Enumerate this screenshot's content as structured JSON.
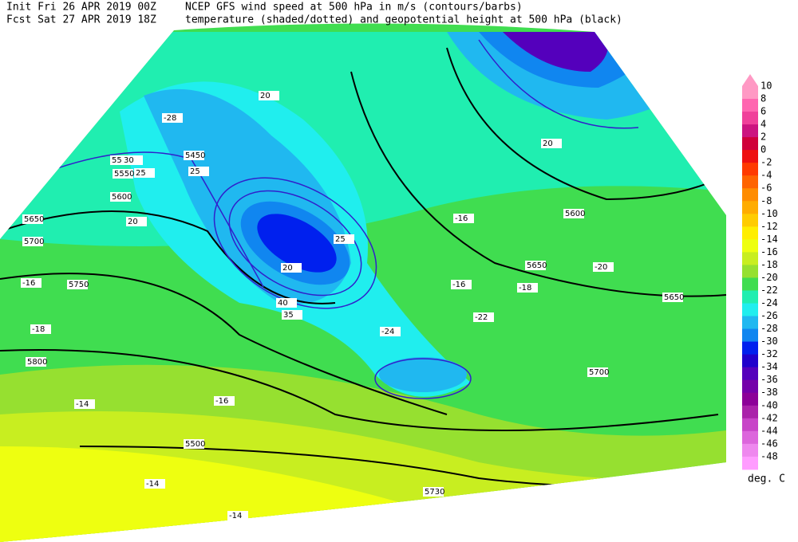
{
  "header": {
    "init": "Init  Fri 26 APR 2019 00Z",
    "fcst": "Fcst Sat 27 APR 2019 18Z",
    "title": "NCEP GFS wind speed at 500 hPa in m/s (contours/barbs)",
    "subtitle": "temperature (shaded/dotted) and geopotential height at 500 hPa (black)"
  },
  "colorbar": {
    "unit": "deg. C",
    "items": [
      {
        "label": "10",
        "color": "#ff99c4"
      },
      {
        "label": "8",
        "color": "#ff66b0"
      },
      {
        "label": "6",
        "color": "#f0409a"
      },
      {
        "label": "4",
        "color": "#cc1480"
      },
      {
        "label": "2",
        "color": "#d0003a"
      },
      {
        "label": "0",
        "color": "#ee1010"
      },
      {
        "label": "-2",
        "color": "#ff3a00"
      },
      {
        "label": "-4",
        "color": "#ff6400"
      },
      {
        "label": "-6",
        "color": "#ff8c00"
      },
      {
        "label": "-8",
        "color": "#ffac00"
      },
      {
        "label": "-10",
        "color": "#ffcc00"
      },
      {
        "label": "-12",
        "color": "#ffee00"
      },
      {
        "label": "-14",
        "color": "#eeff10"
      },
      {
        "label": "-16",
        "color": "#c8ee20"
      },
      {
        "label": "-18",
        "color": "#96e030"
      },
      {
        "label": "-20",
        "color": "#40dd50"
      },
      {
        "label": "-22",
        "color": "#20eeb0"
      },
      {
        "label": "-24",
        "color": "#20eeee"
      },
      {
        "label": "-26",
        "color": "#20b8f0"
      },
      {
        "label": "-28",
        "color": "#1086f0"
      },
      {
        "label": "-30",
        "color": "#0020ee"
      },
      {
        "label": "-32",
        "color": "#2000cc"
      },
      {
        "label": "-34",
        "color": "#5400bc"
      },
      {
        "label": "-36",
        "color": "#7400aa"
      },
      {
        "label": "-38",
        "color": "#8c0098"
      },
      {
        "label": "-40",
        "color": "#aa22aa"
      },
      {
        "label": "-42",
        "color": "#c844c8"
      },
      {
        "label": "-44",
        "color": "#dc66dc"
      },
      {
        "label": "-46",
        "color": "#ee88ee"
      },
      {
        "label": "-48",
        "color": "#ff9cff"
      }
    ]
  },
  "map": {
    "labels": [
      "5450",
      "5500",
      "5550",
      "5600",
      "5650",
      "5700",
      "5750",
      "5800",
      "5600",
      "5650",
      "5700",
      "5650",
      "5500",
      "5730",
      "-16",
      "-16",
      "-18",
      "-16",
      "-14",
      "-14",
      "-14",
      "-20",
      "-22",
      "-28",
      "-24",
      "-16",
      "-18",
      "20",
      "25",
      "20",
      "30",
      "25",
      "20",
      "25",
      "20",
      "40",
      "35"
    ]
  }
}
